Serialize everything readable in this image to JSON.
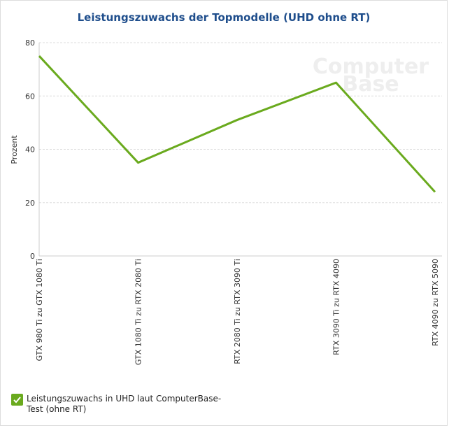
{
  "chart_data": {
    "type": "line",
    "title": "Leistungszuwachs der Topmodelle (UHD ohne RT)",
    "y_label": "Prozent",
    "watermark": [
      "Computer",
      "Base"
    ],
    "categories": [
      "GTX 980 Ti zu GTX 1080 Ti",
      "GTX 1080 Ti zu RTX 2080 Ti",
      "RTX 2080 Ti zu RTX 3090 Ti",
      "RTX 3090 Ti zu RTX 4090",
      "RTX 4090 zu RTX 5090"
    ],
    "series": [
      {
        "name": "Leistungszuwachs in UHD laut ComputerBase-Test (ohne RT)",
        "color": "#6aaa1e",
        "values": [
          75,
          35,
          51,
          65,
          24
        ]
      }
    ],
    "ylim": [
      0,
      80
    ],
    "yticks": [
      0,
      20,
      40,
      60,
      80
    ],
    "grid": true,
    "legend": "bottom-left"
  }
}
